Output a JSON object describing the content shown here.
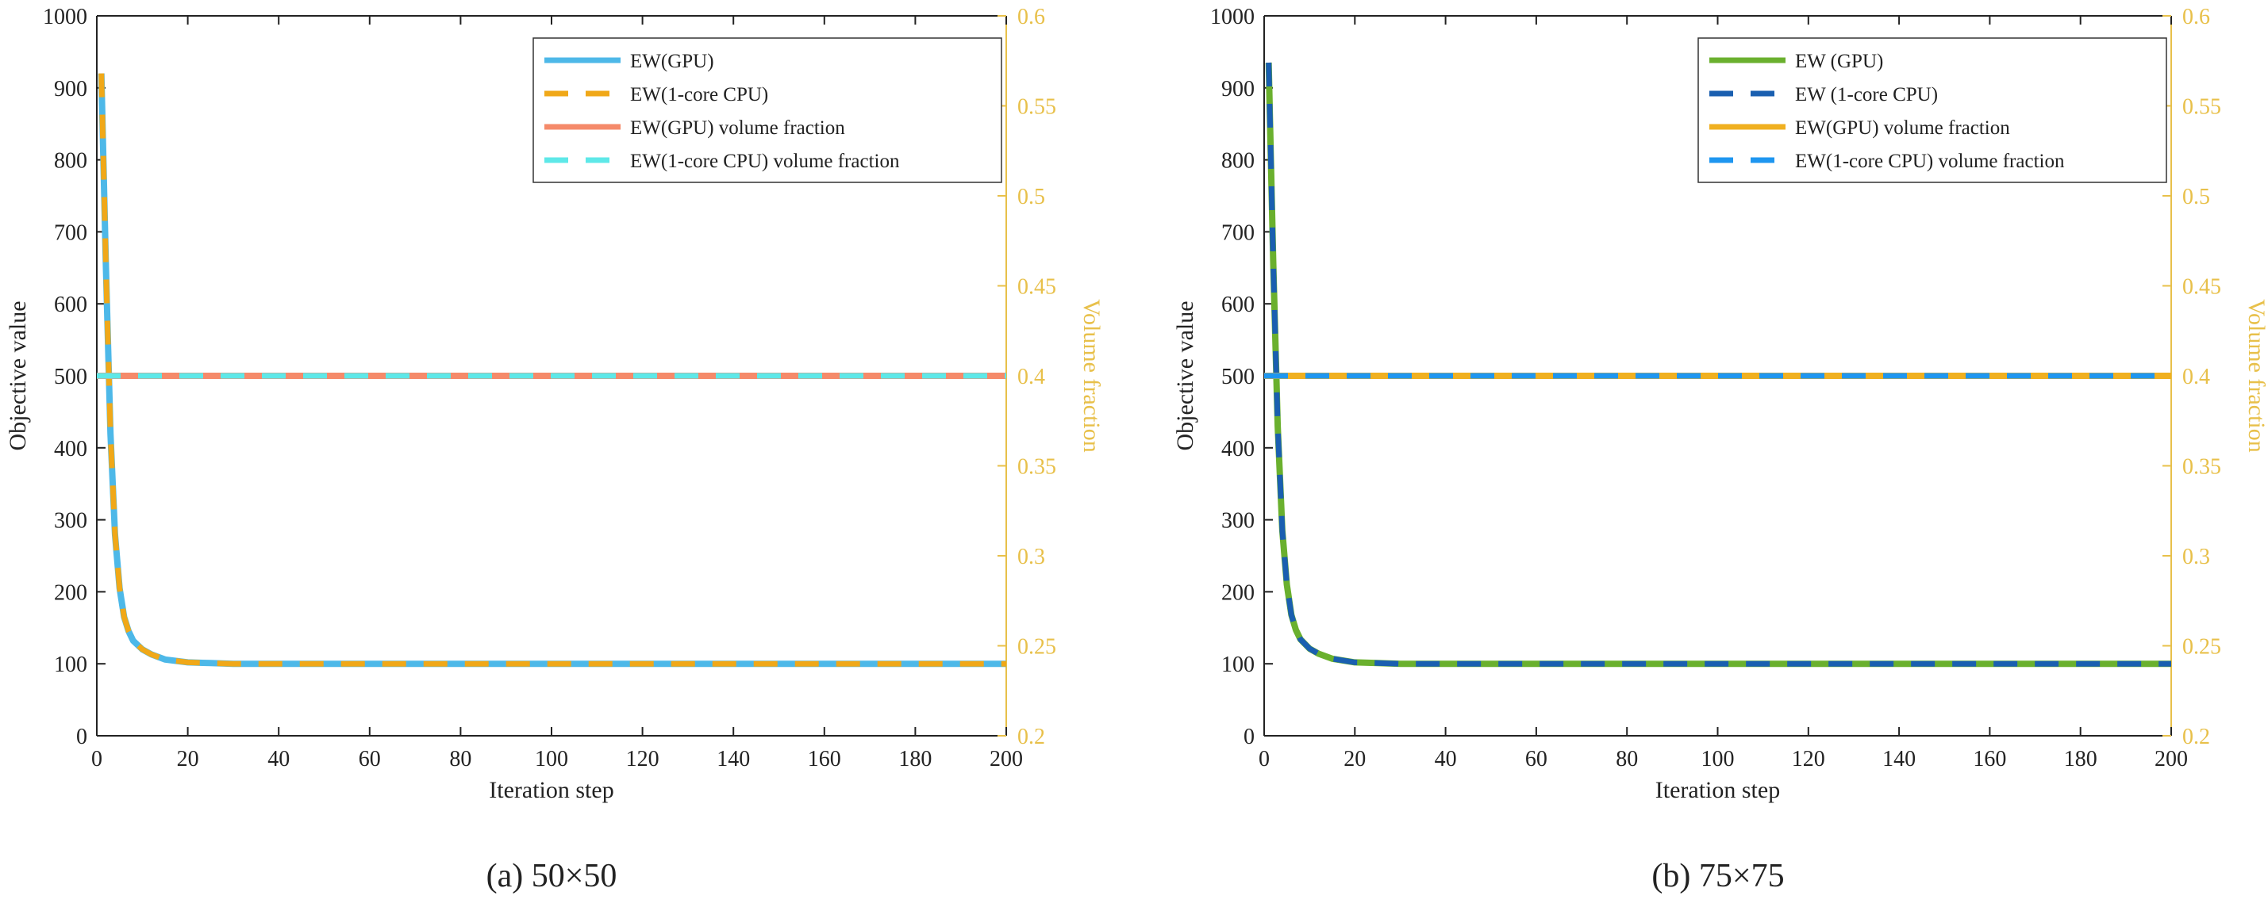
{
  "chart_data": [
    {
      "type": "line",
      "caption": "(a) 50×50",
      "xlabel": "Iteration step",
      "ylabel": "Objective value",
      "y2label": "Volume fraction",
      "xlim": [
        0,
        200
      ],
      "ylim": [
        0,
        1000
      ],
      "y2lim": [
        0.2,
        0.6
      ],
      "xticks": [
        "0",
        "20",
        "40",
        "60",
        "80",
        "100",
        "120",
        "140",
        "160",
        "180",
        "200"
      ],
      "yticks": [
        "0",
        "100",
        "200",
        "300",
        "400",
        "500",
        "600",
        "700",
        "800",
        "900",
        "1000"
      ],
      "y2ticks": [
        "0.2",
        "0.25",
        "0.3",
        "0.35",
        "0.4",
        "0.45",
        "0.5",
        "0.55",
        "0.6"
      ],
      "legend_position": "top-right",
      "series": [
        {
          "name": "EW(GPU)",
          "axis": "left",
          "color": "#4db8e8",
          "style": "solid",
          "x": [
            1,
            2,
            3,
            4,
            5,
            6,
            7,
            8,
            10,
            12,
            15,
            20,
            25,
            30,
            40,
            60,
            100,
            150,
            200
          ],
          "y": [
            920,
            650,
            420,
            280,
            205,
            165,
            145,
            132,
            120,
            113,
            106,
            102,
            101,
            100,
            100,
            100,
            100,
            100,
            100
          ]
        },
        {
          "name": "EW(1-core CPU)",
          "axis": "left",
          "color": "#f0a818",
          "style": "dashed",
          "x": [
            1,
            2,
            3,
            4,
            5,
            6,
            7,
            8,
            10,
            12,
            15,
            20,
            25,
            30,
            40,
            60,
            100,
            150,
            200
          ],
          "y": [
            920,
            650,
            420,
            280,
            205,
            165,
            145,
            132,
            120,
            113,
            106,
            102,
            101,
            100,
            100,
            100,
            100,
            100,
            100
          ]
        },
        {
          "name": "EW(GPU) volume fraction",
          "axis": "right",
          "color": "#f58a6a",
          "style": "solid",
          "x": [
            0,
            200
          ],
          "y": [
            0.4,
            0.4
          ]
        },
        {
          "name": "EW(1-core CPU) volume fraction",
          "axis": "right",
          "color": "#5ee8e8",
          "style": "dashed",
          "x": [
            0,
            200
          ],
          "y": [
            0.4,
            0.4
          ]
        }
      ]
    },
    {
      "type": "line",
      "caption": "(b) 75×75",
      "xlabel": "Iteration step",
      "ylabel": "Objective value",
      "y2label": "Volume fraction",
      "xlim": [
        0,
        200
      ],
      "ylim": [
        0,
        1000
      ],
      "y2lim": [
        0.2,
        0.6
      ],
      "xticks": [
        "0",
        "20",
        "40",
        "60",
        "80",
        "100",
        "120",
        "140",
        "160",
        "180",
        "200"
      ],
      "yticks": [
        "0",
        "100",
        "200",
        "300",
        "400",
        "500",
        "600",
        "700",
        "800",
        "900",
        "1000"
      ],
      "y2ticks": [
        "0.2",
        "0.25",
        "0.3",
        "0.35",
        "0.4",
        "0.45",
        "0.5",
        "0.55",
        "0.6"
      ],
      "legend_position": "top-right",
      "series": [
        {
          "name": "EW (GPU)",
          "axis": "left",
          "color": "#6ab02e",
          "style": "solid",
          "x": [
            1,
            2,
            3,
            4,
            5,
            6,
            7,
            8,
            10,
            12,
            15,
            20,
            25,
            30,
            40,
            60,
            100,
            150,
            200
          ],
          "y": [
            935,
            660,
            430,
            285,
            210,
            168,
            147,
            134,
            121,
            114,
            107,
            102,
            101,
            100,
            100,
            100,
            100,
            100,
            100
          ]
        },
        {
          "name": "EW (1-core CPU)",
          "axis": "left",
          "color": "#1a5fb0",
          "style": "dashed",
          "x": [
            1,
            2,
            3,
            4,
            5,
            6,
            7,
            8,
            10,
            12,
            15,
            20,
            25,
            30,
            40,
            60,
            100,
            150,
            200
          ],
          "y": [
            935,
            660,
            430,
            285,
            210,
            168,
            147,
            134,
            121,
            114,
            107,
            102,
            101,
            100,
            100,
            100,
            100,
            100,
            100
          ]
        },
        {
          "name": "EW(GPU) volume fraction",
          "axis": "right",
          "color": "#f0b020",
          "style": "solid",
          "x": [
            0,
            200
          ],
          "y": [
            0.4,
            0.4
          ]
        },
        {
          "name": "EW(1-core CPU) volume fraction",
          "axis": "right",
          "color": "#1e96f0",
          "style": "dashed",
          "x": [
            0,
            200
          ],
          "y": [
            0.4,
            0.4
          ]
        }
      ]
    }
  ]
}
